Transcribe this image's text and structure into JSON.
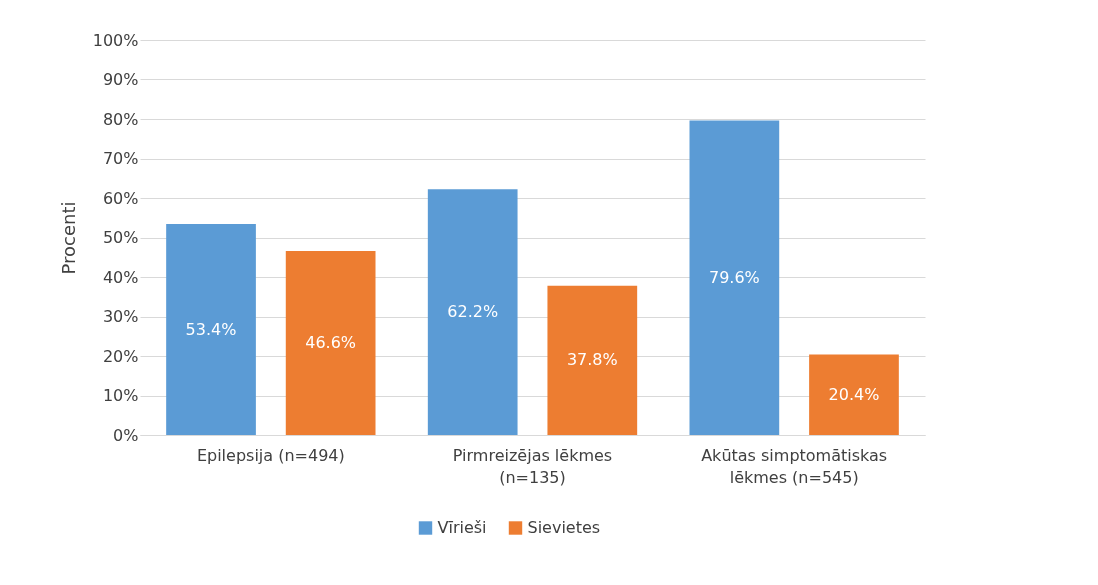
{
  "chart_data": {
    "type": "bar",
    "ylabel": "Procenti",
    "categories": [
      "Epilepsija (n=494)",
      "Pirmreizējas lēkmes (n=135)",
      "Akūtas simptomātiskas lēkmes (n=545)"
    ],
    "series": [
      {
        "name": "Vīrieši",
        "color": "#5b9bd5",
        "values": [
          53.4,
          62.2,
          79.6
        ],
        "value_labels": [
          "53.4%",
          "62.2%",
          "79.6%"
        ]
      },
      {
        "name": "Sievietes",
        "color": "#ed7d31",
        "values": [
          46.6,
          37.8,
          20.4
        ],
        "value_labels": [
          "46.6%",
          "37.8%",
          "20.4%"
        ]
      }
    ],
    "ylim": [
      0,
      100
    ],
    "yticks": [
      {
        "value": 0,
        "label": "0%"
      },
      {
        "value": 10,
        "label": "10%"
      },
      {
        "value": 20,
        "label": "20%"
      },
      {
        "value": 30,
        "label": "30%"
      },
      {
        "value": 40,
        "label": "40%"
      },
      {
        "value": 50,
        "label": "50%"
      },
      {
        "value": 60,
        "label": "60%"
      },
      {
        "value": 70,
        "label": "70%"
      },
      {
        "value": 80,
        "label": "80%"
      },
      {
        "value": 90,
        "label": "90%"
      },
      {
        "value": 100,
        "label": "100%"
      }
    ],
    "grid": "y",
    "legend": "bottom"
  }
}
